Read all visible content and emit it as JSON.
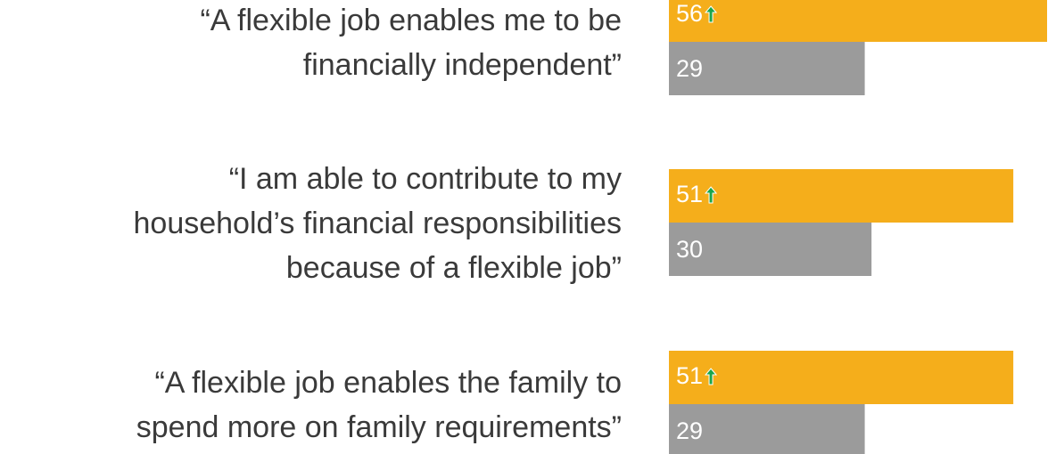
{
  "chart_data": {
    "type": "bar",
    "categories": [
      [
        "“A flexible job enables me to be",
        "financially independent”"
      ],
      [
        "“I am able to contribute to my",
        "household’s financial responsibilities",
        "because of a flexible job”"
      ],
      [
        "“A flexible job enables the family to",
        "spend more on family requirements”"
      ]
    ],
    "series": [
      {
        "color": "#f5ae1b",
        "values": [
          56,
          51,
          51
        ]
      },
      {
        "color": "#9b9b9b",
        "values": [
          29,
          30,
          29
        ]
      }
    ]
  }
}
